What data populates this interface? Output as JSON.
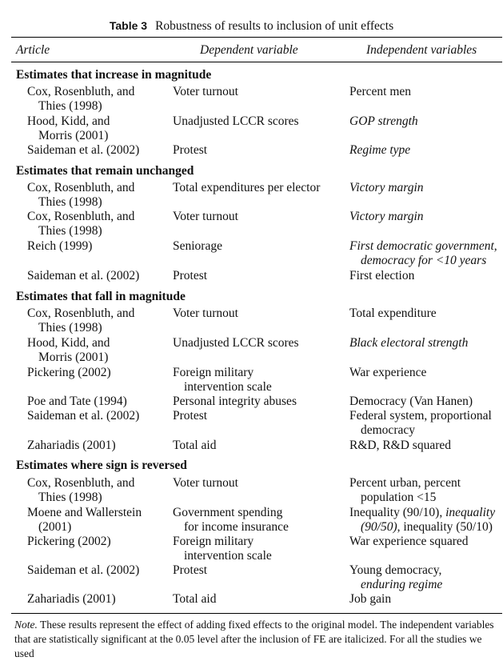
{
  "caption": {
    "label": "Table 3",
    "title": "Robustness of results to inclusion of unit effects"
  },
  "columns": {
    "article": "Article",
    "dependent": "Dependent variable",
    "independent": "Independent variables"
  },
  "sections": [
    {
      "title": "Estimates that increase in magnitude",
      "rows": [
        {
          "article": [
            "Cox, Rosenbluth, and",
            "Thies (1998)"
          ],
          "dependent": [
            "Voter turnout"
          ],
          "independent": [
            "Percent men"
          ],
          "italic": false
        },
        {
          "article": [
            "Hood, Kidd, and",
            "Morris (2001)"
          ],
          "dependent": [
            "Unadjusted LCCR scores"
          ],
          "independent": [
            "GOP strength"
          ],
          "italic": true
        },
        {
          "article": [
            "Saideman et al. (2002)"
          ],
          "dependent": [
            "Protest"
          ],
          "independent": [
            "Regime type"
          ],
          "italic": true
        }
      ]
    },
    {
      "title": "Estimates that remain unchanged",
      "rows": [
        {
          "article": [
            "Cox, Rosenbluth, and",
            "Thies (1998)"
          ],
          "dependent": [
            "Total expenditures per elector"
          ],
          "independent": [
            "Victory margin"
          ],
          "italic": true
        },
        {
          "article": [
            "Cox, Rosenbluth, and",
            "Thies (1998)"
          ],
          "dependent": [
            "Voter turnout"
          ],
          "independent": [
            "Victory margin"
          ],
          "italic": true
        },
        {
          "article": [
            "Reich (1999)"
          ],
          "dependent": [
            "Seniorage"
          ],
          "independent": [
            "First democratic government,",
            "democracy for <10 years"
          ],
          "italic": true
        },
        {
          "article": [
            "Saideman et al. (2002)"
          ],
          "dependent": [
            "Protest"
          ],
          "independent": [
            "First election"
          ],
          "italic": false
        }
      ]
    },
    {
      "title": "Estimates that fall in magnitude",
      "rows": [
        {
          "article": [
            "Cox, Rosenbluth, and",
            "Thies (1998)"
          ],
          "dependent": [
            "Voter turnout"
          ],
          "independent": [
            "Total expenditure"
          ],
          "italic": false
        },
        {
          "article": [
            "Hood, Kidd, and",
            "Morris (2001)"
          ],
          "dependent": [
            "Unadjusted LCCR scores"
          ],
          "independent": [
            "Black electoral strength"
          ],
          "italic": true
        },
        {
          "article": [
            "Pickering (2002)"
          ],
          "dependent": [
            "Foreign military",
            "intervention scale"
          ],
          "independent": [
            "War experience"
          ],
          "italic": false
        },
        {
          "article": [
            "Poe and Tate (1994)"
          ],
          "dependent": [
            "Personal integrity abuses"
          ],
          "independent": [
            "Democracy (Van Hanen)"
          ],
          "italic": false
        },
        {
          "article": [
            "Saideman et al. (2002)"
          ],
          "dependent": [
            "Protest"
          ],
          "independent": [
            "Federal system, proportional",
            "democracy"
          ],
          "italic": false
        },
        {
          "article": [
            "Zahariadis (2001)"
          ],
          "dependent": [
            "Total aid"
          ],
          "independent": [
            "R&D, R&D squared"
          ],
          "italic": false
        }
      ]
    },
    {
      "title": "Estimates where sign is reversed",
      "rows": [
        {
          "article": [
            "Cox, Rosenbluth, and",
            "Thies (1998)"
          ],
          "dependent": [
            "Voter turnout"
          ],
          "independent": [
            "Percent urban, percent",
            "population <15"
          ],
          "italic": false
        },
        {
          "article": [
            "Moene and Wallerstein",
            "(2001)"
          ],
          "dependent": [
            "Government spending",
            "for income insurance"
          ],
          "independent_rich": [
            [
              {
                "t": "Inequality (90/10), ",
                "i": false
              },
              {
                "t": "inequality",
                "i": true
              }
            ],
            [
              {
                "t": "(90/50)",
                "i": true
              },
              {
                "t": ", inequality (50/10)",
                "i": false
              }
            ]
          ],
          "italic": false
        },
        {
          "article": [
            "Pickering (2002)"
          ],
          "dependent": [
            "Foreign military",
            "intervention scale"
          ],
          "independent": [
            "War experience squared"
          ],
          "italic": false
        },
        {
          "article": [
            "Saideman et al. (2002)"
          ],
          "dependent": [
            "Protest"
          ],
          "independent_rich": [
            [
              {
                "t": "Young democracy,",
                "i": false
              }
            ],
            [
              {
                "t": "enduring regime",
                "i": true
              }
            ]
          ],
          "italic": false
        },
        {
          "article": [
            "Zahariadis (2001)"
          ],
          "dependent": [
            "Total aid"
          ],
          "independent": [
            "Job gain"
          ],
          "italic": false
        }
      ]
    }
  ],
  "note": {
    "label": "Note.",
    "text": "These results represent the effect of adding fixed effects to the original model. The independent variables that are statistically significant at the 0.05 level after the inclusion of FE are italicized. For all the studies we used"
  }
}
